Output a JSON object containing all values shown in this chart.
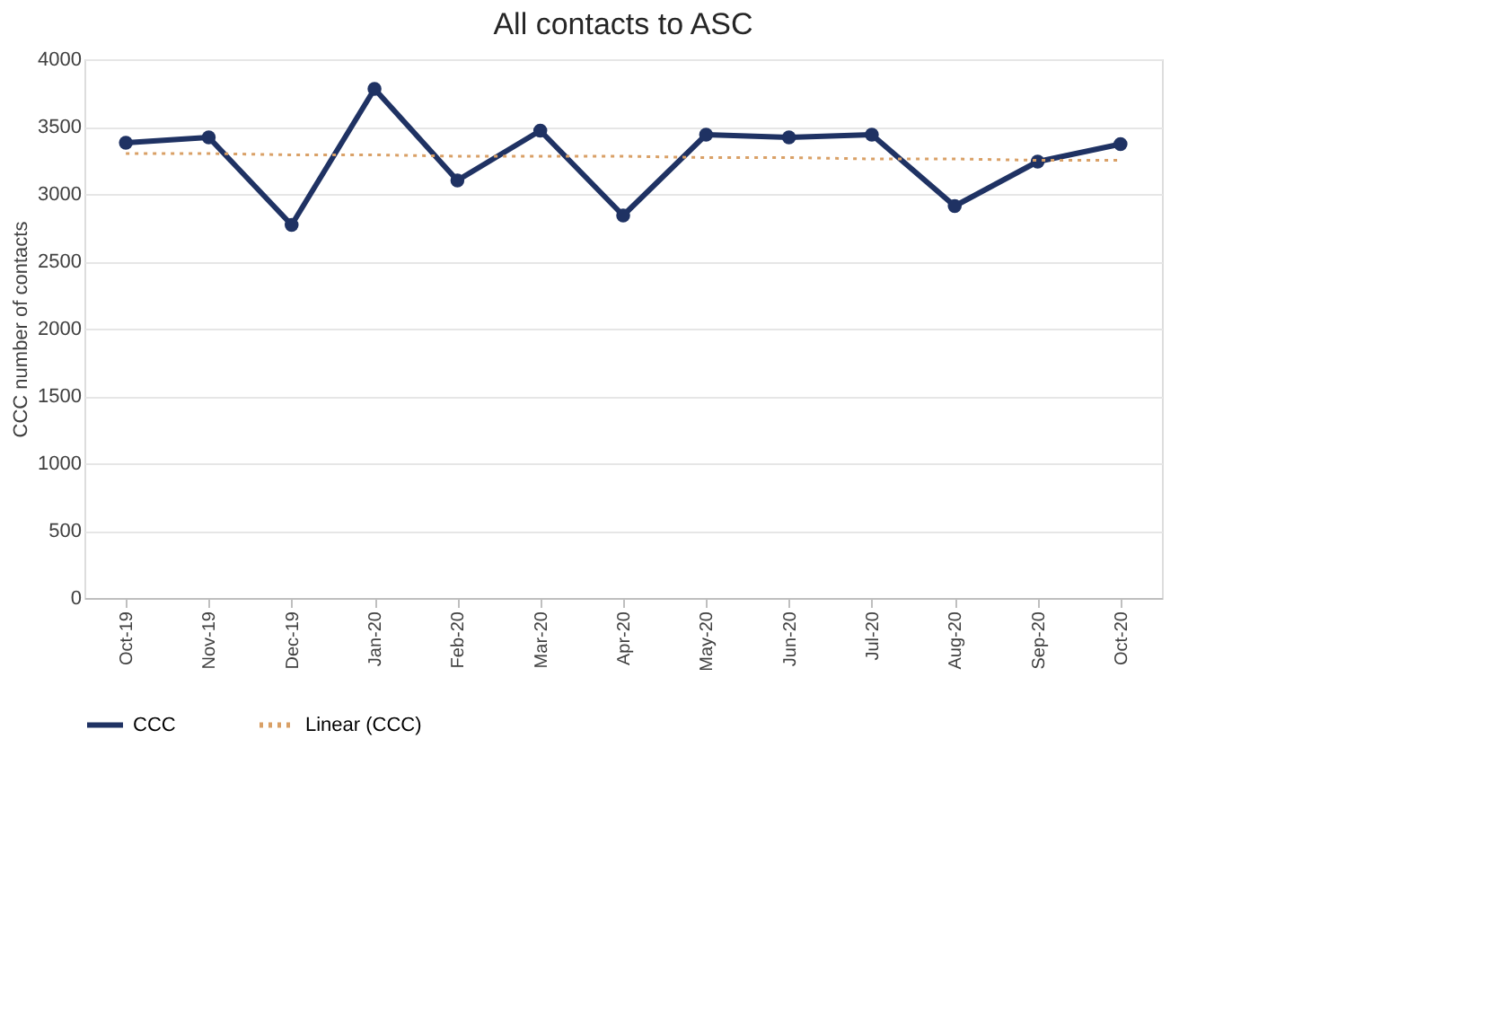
{
  "chart_data": {
    "type": "line",
    "title": "All contacts to ASC",
    "ylabel": "CCC number of contacts",
    "categories": [
      "Oct-19",
      "Nov-19",
      "Dec-19",
      "Jan-20",
      "Feb-20",
      "Mar-20",
      "Apr-20",
      "May-20",
      "Jun-20",
      "Jul-20",
      "Aug-20",
      "Sep-20",
      "Oct-20"
    ],
    "series": [
      {
        "name": "CCC",
        "color": "#1f3263",
        "marker": "circle",
        "line_style": "solid",
        "values": [
          3380,
          3420,
          2770,
          3780,
          3100,
          3470,
          2840,
          3440,
          3420,
          3440,
          2910,
          3240,
          3370
        ]
      },
      {
        "name": "Linear (CCC)",
        "type": "line",
        "color": "#d9a066",
        "marker": "none",
        "line_style": "dotted",
        "values": [
          3300,
          3300,
          3290,
          3290,
          3280,
          3280,
          3280,
          3270,
          3270,
          3260,
          3260,
          3250,
          3250
        ]
      }
    ],
    "ylim": [
      0,
      4000
    ],
    "yticks": [
      0,
      500,
      1000,
      1500,
      2000,
      2500,
      3000,
      3500,
      4000
    ],
    "grid": "y",
    "legend": "bottom"
  }
}
